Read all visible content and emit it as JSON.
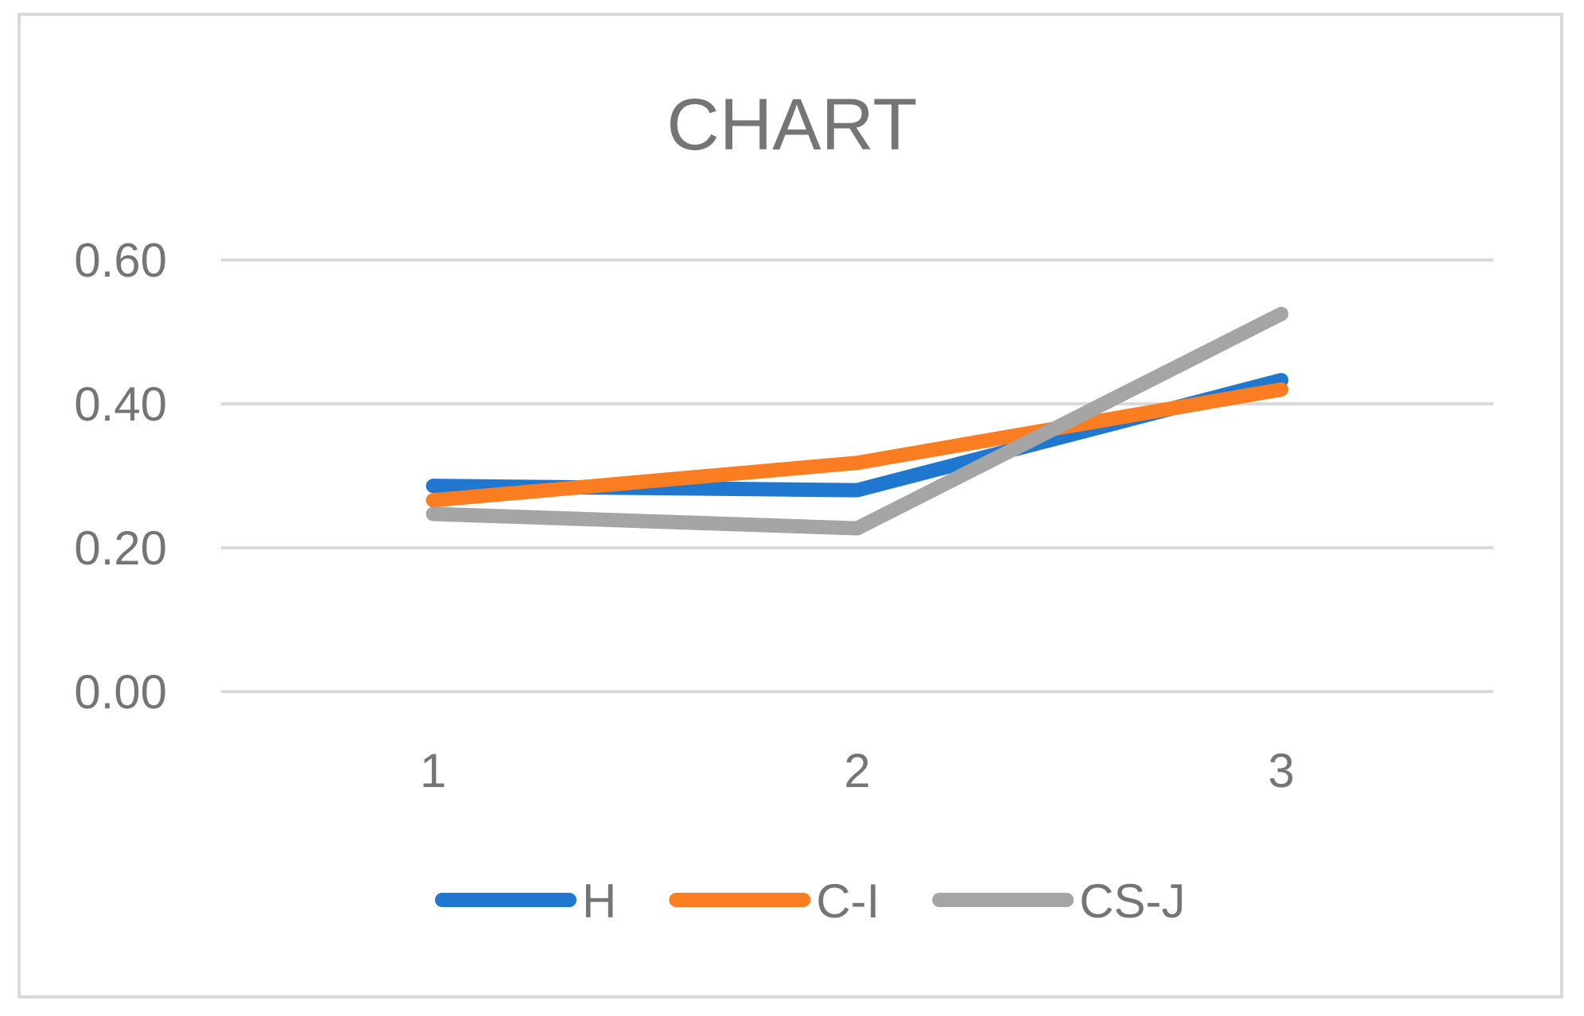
{
  "chart_data": {
    "type": "line",
    "title": "CHART",
    "xlabel": "",
    "ylabel": "",
    "categories": [
      "1",
      "2",
      "3"
    ],
    "ylim": [
      0,
      0.6
    ],
    "y_ticks": [
      "0.00",
      "0.20",
      "0.40",
      "0.60"
    ],
    "y_tick_values": [
      0,
      0.2,
      0.4,
      0.6
    ],
    "grid": true,
    "legend_position": "bottom",
    "series": [
      {
        "name": "H",
        "color": "#1f77d0",
        "values": [
          0.286,
          0.28,
          0.433
        ]
      },
      {
        "name": "C-I",
        "color": "#fb7d22",
        "values": [
          0.266,
          0.318,
          0.42
        ]
      },
      {
        "name": "CS-J",
        "color": "#a5a5a5",
        "values": [
          0.247,
          0.227,
          0.525
        ]
      }
    ]
  }
}
